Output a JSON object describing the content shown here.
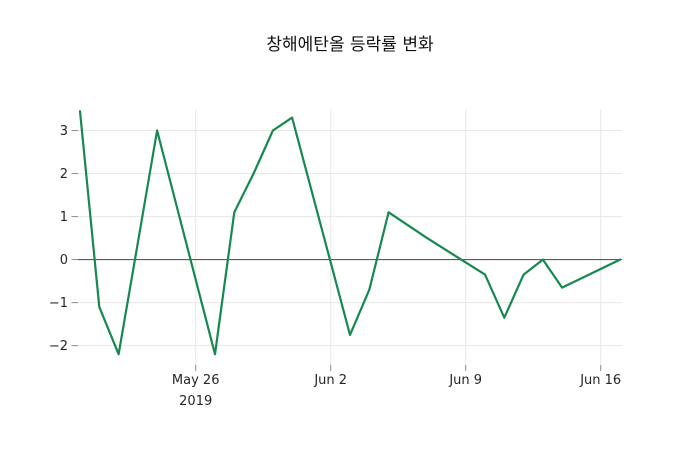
{
  "chart_data": {
    "type": "line",
    "title": "창해에탄올 등락률 변화",
    "series_name": "등락률",
    "x": [
      "2019-05-20",
      "2019-05-21",
      "2019-05-22",
      "2019-05-23",
      "2019-05-24",
      "2019-05-27",
      "2019-05-28",
      "2019-05-29",
      "2019-05-30",
      "2019-05-31",
      "2019-06-03",
      "2019-06-04",
      "2019-06-05",
      "2019-06-07",
      "2019-06-10",
      "2019-06-11",
      "2019-06-12",
      "2019-06-13",
      "2019-06-14",
      "2019-06-17"
    ],
    "values": [
      3.45,
      -1.1,
      -2.2,
      0.4,
      3.0,
      -2.2,
      1.1,
      2.0,
      3.0,
      3.3,
      -1.75,
      -0.7,
      1.1,
      0.5,
      -0.35,
      -1.35,
      -0.35,
      0.0,
      -0.65,
      0.0
    ],
    "xlabel": "",
    "ylabel": "",
    "ylim": [
      -2.45,
      3.5
    ],
    "y_ticks": [
      {
        "value": 3,
        "label": "3"
      },
      {
        "value": 2,
        "label": "2"
      },
      {
        "value": 1,
        "label": "1"
      },
      {
        "value": 0,
        "label": "0"
      },
      {
        "value": -1,
        "label": "−1"
      },
      {
        "value": -2,
        "label": "−2"
      }
    ],
    "x_ticks": [
      {
        "date": "2019-05-26",
        "label": "May 26",
        "sublabel": "2019"
      },
      {
        "date": "2019-06-02",
        "label": "Jun 2"
      },
      {
        "date": "2019-06-09",
        "label": "Jun 9"
      },
      {
        "date": "2019-06-16",
        "label": "Jun 16"
      }
    ],
    "grid": true,
    "zero_line": true,
    "legend": "none",
    "colors": {
      "line": "#168850",
      "grid": "#e7e7e7",
      "zero_line": "#454545",
      "tick": "#8c8c8c",
      "text": "#262626",
      "background": "#ffffff"
    }
  }
}
